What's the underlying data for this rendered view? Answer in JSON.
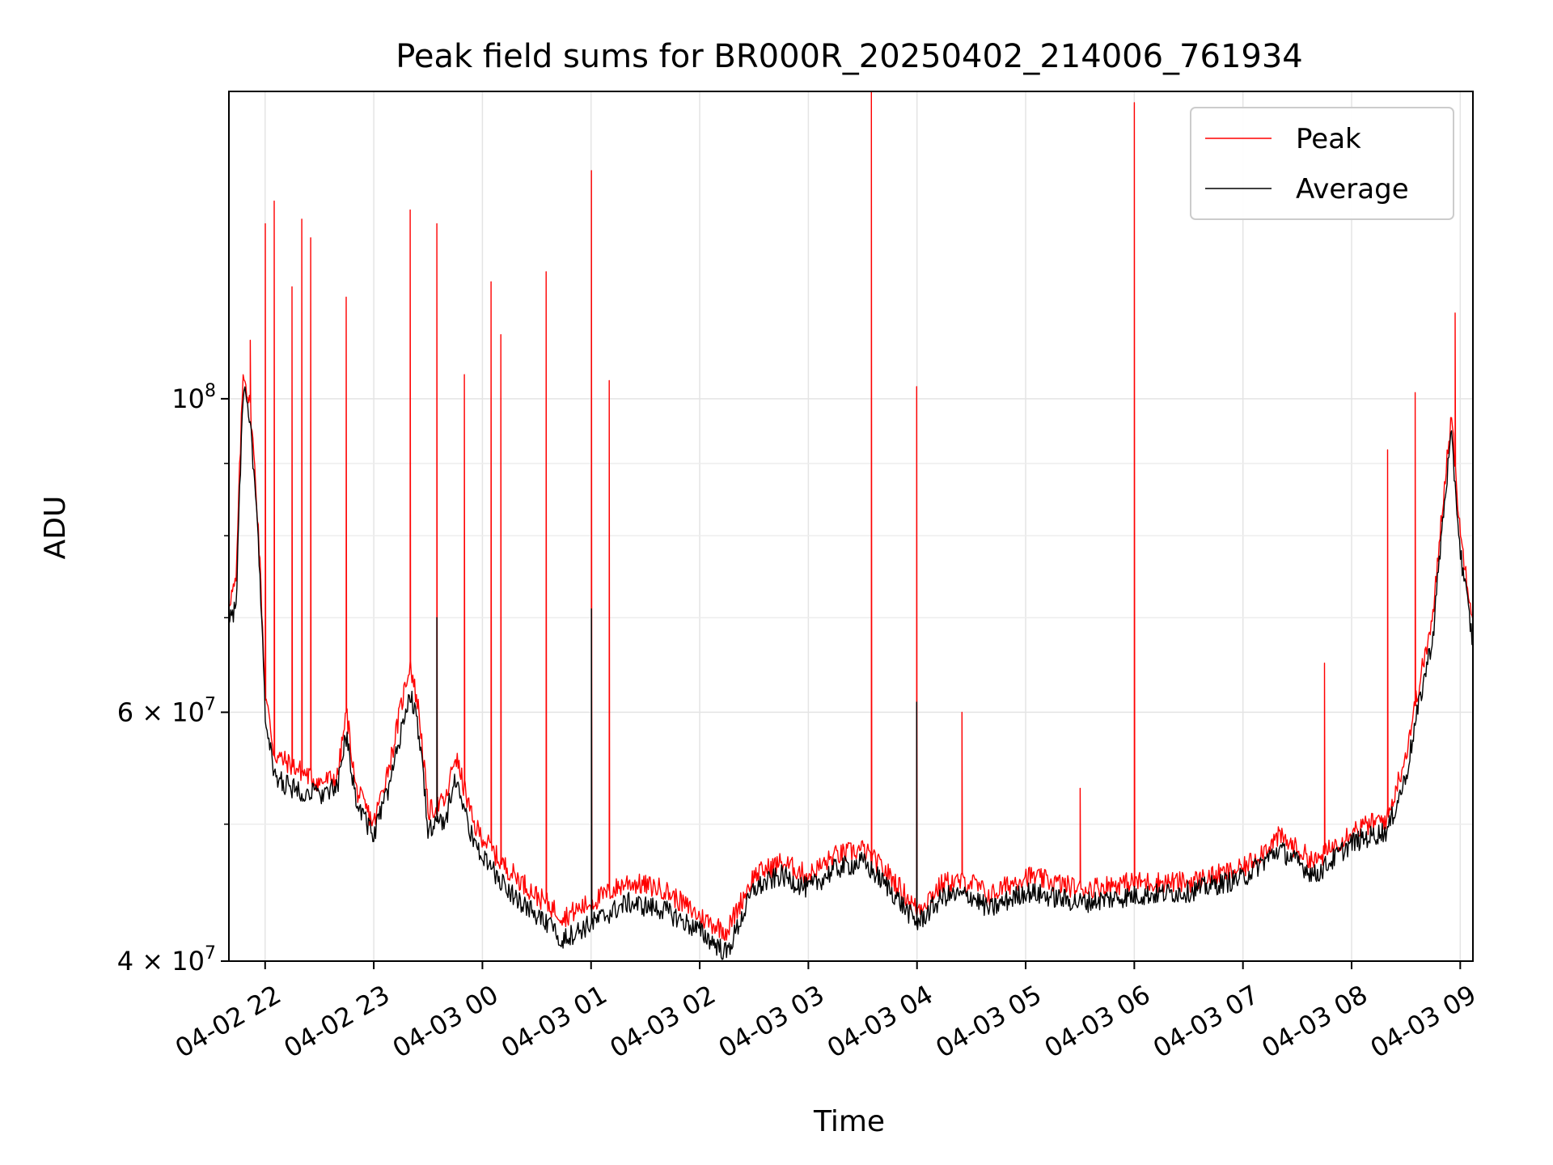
{
  "chart_data": {
    "type": "line",
    "title": "Peak field sums for BR000R_20250402_214006_761934",
    "xlabel": "Time",
    "ylabel": "ADU",
    "yscale": "log",
    "ylim": [
      40000000,
      165000000
    ],
    "xlim": [
      "2025-04-02 21:40",
      "2025-04-03 09:07"
    ],
    "grid": true,
    "legend_position": "top-right",
    "x_ticks": [
      "04-02 22",
      "04-02 23",
      "04-03 00",
      "04-03 01",
      "04-03 02",
      "04-03 03",
      "04-03 04",
      "04-03 05",
      "04-03 06",
      "04-03 07",
      "04-03 08",
      "04-03 09"
    ],
    "y_ticks": [
      {
        "value": 40000000,
        "base": "4",
        "exp": "7"
      },
      {
        "value": 60000000,
        "base": "6",
        "exp": "7"
      },
      {
        "value": 100000000,
        "base": "10",
        "exp": "8"
      }
    ],
    "series": [
      {
        "name": "Peak",
        "color": "#ff0000",
        "baseline": [
          [
            "2025-04-02 21:40",
            72000000
          ],
          [
            "2025-04-02 21:44",
            74000000
          ],
          [
            "2025-04-02 21:48",
            105000000
          ],
          [
            "2025-04-02 21:52",
            98000000
          ],
          [
            "2025-04-02 21:56",
            82000000
          ],
          [
            "2025-04-02 22:00",
            62000000
          ],
          [
            "2025-04-02 22:05",
            56000000
          ],
          [
            "2025-04-02 22:15",
            55000000
          ],
          [
            "2025-04-02 22:30",
            53500000
          ],
          [
            "2025-04-02 22:40",
            54000000
          ],
          [
            "2025-04-02 22:45",
            60000000
          ],
          [
            "2025-04-02 22:50",
            53000000
          ],
          [
            "2025-04-02 23:00",
            50000000
          ],
          [
            "2025-04-02 23:10",
            56000000
          ],
          [
            "2025-04-02 23:20",
            65000000
          ],
          [
            "2025-04-02 23:25",
            60000000
          ],
          [
            "2025-04-02 23:30",
            51000000
          ],
          [
            "2025-04-02 23:40",
            52000000
          ],
          [
            "2025-04-02 23:45",
            56000000
          ],
          [
            "2025-04-02 23:55",
            50000000
          ],
          [
            "2025-04-03 00:10",
            47000000
          ],
          [
            "2025-04-03 00:30",
            44500000
          ],
          [
            "2025-04-03 00:45",
            43000000
          ],
          [
            "2025-04-03 01:00",
            44000000
          ],
          [
            "2025-04-03 01:20",
            45500000
          ],
          [
            "2025-04-03 01:40",
            45000000
          ],
          [
            "2025-04-03 02:00",
            43000000
          ],
          [
            "2025-04-03 02:15",
            42000000
          ],
          [
            "2025-04-03 02:30",
            46000000
          ],
          [
            "2025-04-03 02:45",
            47000000
          ],
          [
            "2025-04-03 03:00",
            46000000
          ],
          [
            "2025-04-03 03:15",
            47500000
          ],
          [
            "2025-04-03 03:30",
            48000000
          ],
          [
            "2025-04-03 03:45",
            46000000
          ],
          [
            "2025-04-03 04:00",
            43500000
          ],
          [
            "2025-04-03 04:15",
            45500000
          ],
          [
            "2025-04-03 04:30",
            45500000
          ],
          [
            "2025-04-03 04:40",
            44500000
          ],
          [
            "2025-04-03 05:00",
            46000000
          ],
          [
            "2025-04-03 05:30",
            45000000
          ],
          [
            "2025-04-03 06:00",
            45500000
          ],
          [
            "2025-04-03 06:30",
            45500000
          ],
          [
            "2025-04-03 07:00",
            46500000
          ],
          [
            "2025-04-03 07:20",
            49000000
          ],
          [
            "2025-04-03 07:40",
            47000000
          ],
          [
            "2025-04-03 08:00",
            49500000
          ],
          [
            "2025-04-03 08:20",
            50500000
          ],
          [
            "2025-04-03 08:30",
            56000000
          ],
          [
            "2025-04-03 08:45",
            70000000
          ],
          [
            "2025-04-03 08:55",
            97000000
          ],
          [
            "2025-04-03 09:00",
            80000000
          ],
          [
            "2025-04-03 09:07",
            70000000
          ]
        ],
        "spikes": [
          [
            "2025-04-02 21:52",
            110000000
          ],
          [
            "2025-04-02 22:00",
            133000000
          ],
          [
            "2025-04-02 22:05",
            138000000
          ],
          [
            "2025-04-02 22:15",
            120000000
          ],
          [
            "2025-04-02 22:20",
            134000000
          ],
          [
            "2025-04-02 22:25",
            130000000
          ],
          [
            "2025-04-02 22:45",
            118000000
          ],
          [
            "2025-04-02 23:20",
            136000000
          ],
          [
            "2025-04-02 23:35",
            133000000
          ],
          [
            "2025-04-02 23:50",
            104000000
          ],
          [
            "2025-04-03 00:05",
            121000000
          ],
          [
            "2025-04-03 00:10",
            111000000
          ],
          [
            "2025-04-03 00:35",
            123000000
          ],
          [
            "2025-04-03 01:00",
            145000000
          ],
          [
            "2025-04-03 01:10",
            103000000
          ],
          [
            "2025-04-03 03:35",
            165000000
          ],
          [
            "2025-04-03 04:00",
            102000000
          ],
          [
            "2025-04-03 04:25",
            60000000
          ],
          [
            "2025-04-03 05:30",
            53000000
          ],
          [
            "2025-04-03 06:00",
            162000000
          ],
          [
            "2025-04-03 07:45",
            65000000
          ],
          [
            "2025-04-03 08:20",
            92000000
          ],
          [
            "2025-04-03 08:35",
            101000000
          ],
          [
            "2025-04-03 08:57",
            115000000
          ]
        ]
      },
      {
        "name": "Average",
        "color": "#000000",
        "baseline": [
          [
            "2025-04-02 21:40",
            70000000
          ],
          [
            "2025-04-02 21:44",
            71000000
          ],
          [
            "2025-04-02 21:48",
            102000000
          ],
          [
            "2025-04-02 21:52",
            95000000
          ],
          [
            "2025-04-02 21:56",
            80000000
          ],
          [
            "2025-04-02 22:00",
            60000000
          ],
          [
            "2025-04-02 22:05",
            54000000
          ],
          [
            "2025-04-02 22:15",
            53000000
          ],
          [
            "2025-04-02 22:30",
            52500000
          ],
          [
            "2025-04-02 22:40",
            53000000
          ],
          [
            "2025-04-02 22:45",
            58000000
          ],
          [
            "2025-04-02 22:50",
            52000000
          ],
          [
            "2025-04-02 23:00",
            49000000
          ],
          [
            "2025-04-02 23:10",
            54000000
          ],
          [
            "2025-04-02 23:20",
            62000000
          ],
          [
            "2025-04-02 23:25",
            58000000
          ],
          [
            "2025-04-02 23:30",
            49500000
          ],
          [
            "2025-04-02 23:40",
            50500000
          ],
          [
            "2025-04-02 23:45",
            54000000
          ],
          [
            "2025-04-02 23:55",
            48500000
          ],
          [
            "2025-04-03 00:10",
            45500000
          ],
          [
            "2025-04-03 00:30",
            43000000
          ],
          [
            "2025-04-03 00:45",
            41500000
          ],
          [
            "2025-04-03 01:00",
            42500000
          ],
          [
            "2025-04-03 01:20",
            44000000
          ],
          [
            "2025-04-03 01:40",
            43500000
          ],
          [
            "2025-04-03 02:00",
            42000000
          ],
          [
            "2025-04-03 02:15",
            40500000
          ],
          [
            "2025-04-03 02:30",
            45000000
          ],
          [
            "2025-04-03 02:45",
            46000000
          ],
          [
            "2025-04-03 03:00",
            45000000
          ],
          [
            "2025-04-03 03:15",
            46500000
          ],
          [
            "2025-04-03 03:30",
            47000000
          ],
          [
            "2025-04-03 03:45",
            45000000
          ],
          [
            "2025-04-03 04:00",
            42500000
          ],
          [
            "2025-04-03 04:15",
            44500000
          ],
          [
            "2025-04-03 04:30",
            44500000
          ],
          [
            "2025-04-03 04:40",
            43500000
          ],
          [
            "2025-04-03 05:00",
            44800000
          ],
          [
            "2025-04-03 05:30",
            44000000
          ],
          [
            "2025-04-03 06:00",
            44500000
          ],
          [
            "2025-04-03 06:30",
            44800000
          ],
          [
            "2025-04-03 07:00",
            45800000
          ],
          [
            "2025-04-03 07:20",
            48000000
          ],
          [
            "2025-04-03 07:40",
            46000000
          ],
          [
            "2025-04-03 08:00",
            48500000
          ],
          [
            "2025-04-03 08:20",
            49500000
          ],
          [
            "2025-04-03 08:30",
            54000000
          ],
          [
            "2025-04-03 08:45",
            68000000
          ],
          [
            "2025-04-03 08:55",
            94000000
          ],
          [
            "2025-04-03 09:00",
            78000000
          ],
          [
            "2025-04-03 09:07",
            67000000
          ]
        ],
        "spikes": [
          [
            "2025-04-02 23:35",
            70000000
          ],
          [
            "2025-04-03 01:00",
            71000000
          ],
          [
            "2025-04-03 04:00",
            61000000
          ]
        ]
      }
    ]
  }
}
